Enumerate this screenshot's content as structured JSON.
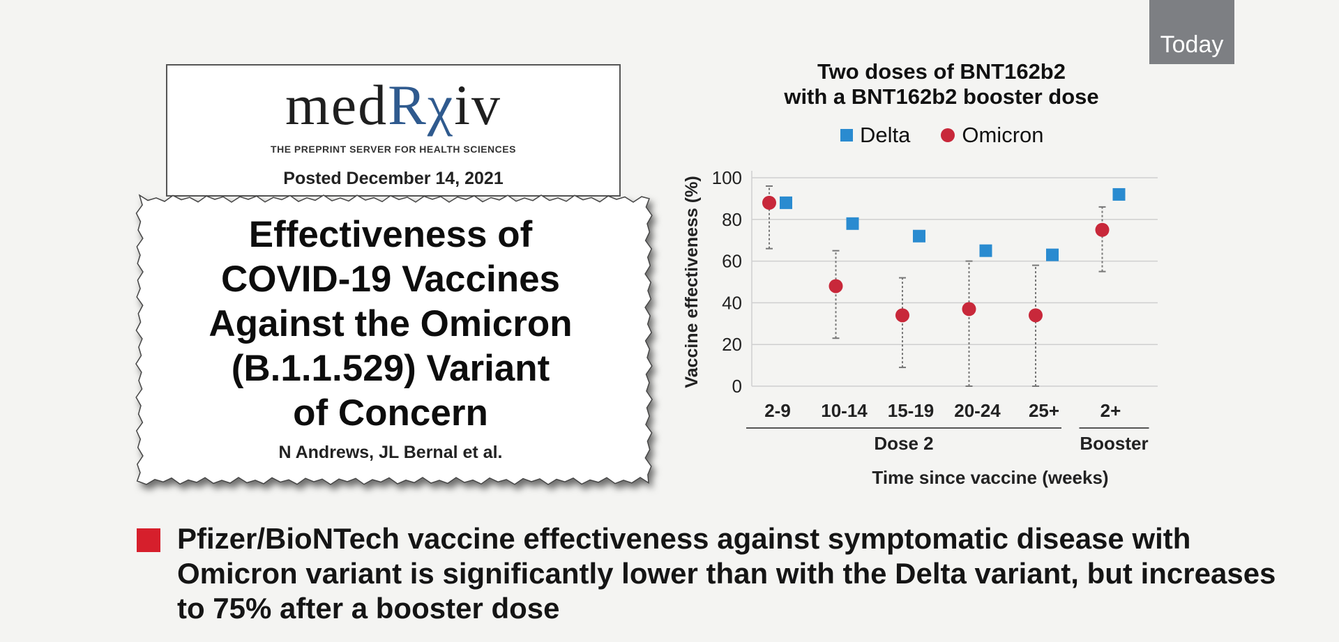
{
  "badge": {
    "label": "Today"
  },
  "medrxiv": {
    "logo_left": "med",
    "logo_rx": "Rχ",
    "logo_right": "iv",
    "subtitle": "THE PREPRINT SERVER FOR HEALTH SCIENCES",
    "posted": "Posted December 14, 2021"
  },
  "paper": {
    "title": "Effectiveness of\nCOVID-19 Vaccines\nAgainst the Omicron\n(B.1.1.529) Variant\nof Concern",
    "authors": "N Andrews, JL Bernal et al."
  },
  "chart_data": {
    "type": "scatter",
    "title": "Two doses of BNT162b2\nwith a BNT162b2 booster dose",
    "ylabel": "Vaccine effectiveness (%)",
    "xlabel": "Time since vaccine (weeks)",
    "ylim": [
      0,
      100
    ],
    "yticks": [
      0,
      20,
      40,
      60,
      80,
      100
    ],
    "categories": [
      "2-9",
      "10-14",
      "15-19",
      "20-24",
      "25+",
      "2+"
    ],
    "groups": [
      {
        "label": "Dose 2",
        "from": 0,
        "to": 4
      },
      {
        "label": "Booster",
        "from": 5,
        "to": 5
      }
    ],
    "grid": true,
    "legend_position": "top",
    "series": [
      {
        "name": "Delta",
        "marker": "square",
        "color": "#2a8bd0",
        "values": [
          88,
          78,
          72,
          65,
          63,
          92
        ]
      },
      {
        "name": "Omicron",
        "marker": "circle",
        "color": "#c8283a",
        "values": [
          88,
          48,
          34,
          37,
          34,
          75
        ],
        "ci_low": [
          66,
          23,
          9,
          0,
          0,
          55
        ],
        "ci_high": [
          96,
          65,
          52,
          60,
          58,
          86
        ]
      }
    ]
  },
  "bullet": {
    "text": "Pfizer/BioNTech vaccine effectiveness against symptomatic disease with Omicron variant is significantly lower than with the Delta variant, but increases to 75% after a booster dose"
  }
}
